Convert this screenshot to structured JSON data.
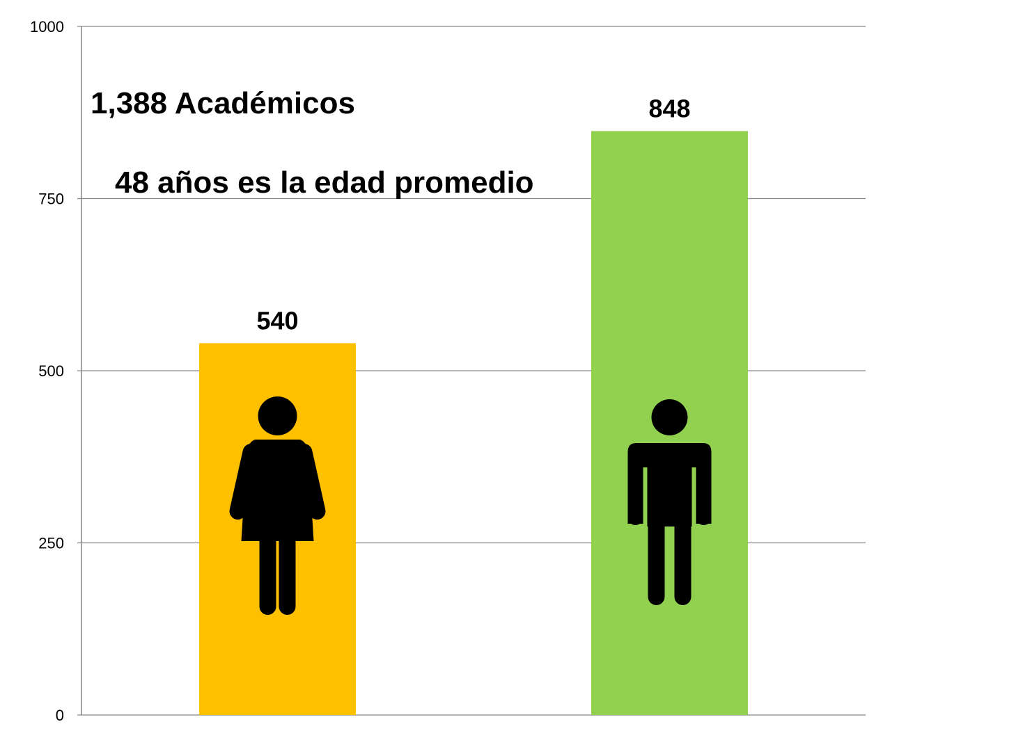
{
  "chart_data": {
    "type": "bar",
    "categories": [
      "Mujeres",
      "Hombres"
    ],
    "values": [
      540,
      848
    ],
    "colors": [
      "#FFC000",
      "#92D050"
    ],
    "icons": [
      "woman-icon",
      "man-icon"
    ],
    "ylim": [
      0,
      1000
    ],
    "yticks": [
      0,
      250,
      500,
      750,
      1000
    ],
    "grid": true,
    "legend": "none",
    "annotations": [
      "1,388 Académicos",
      "48 años es la edad promedio"
    ]
  }
}
